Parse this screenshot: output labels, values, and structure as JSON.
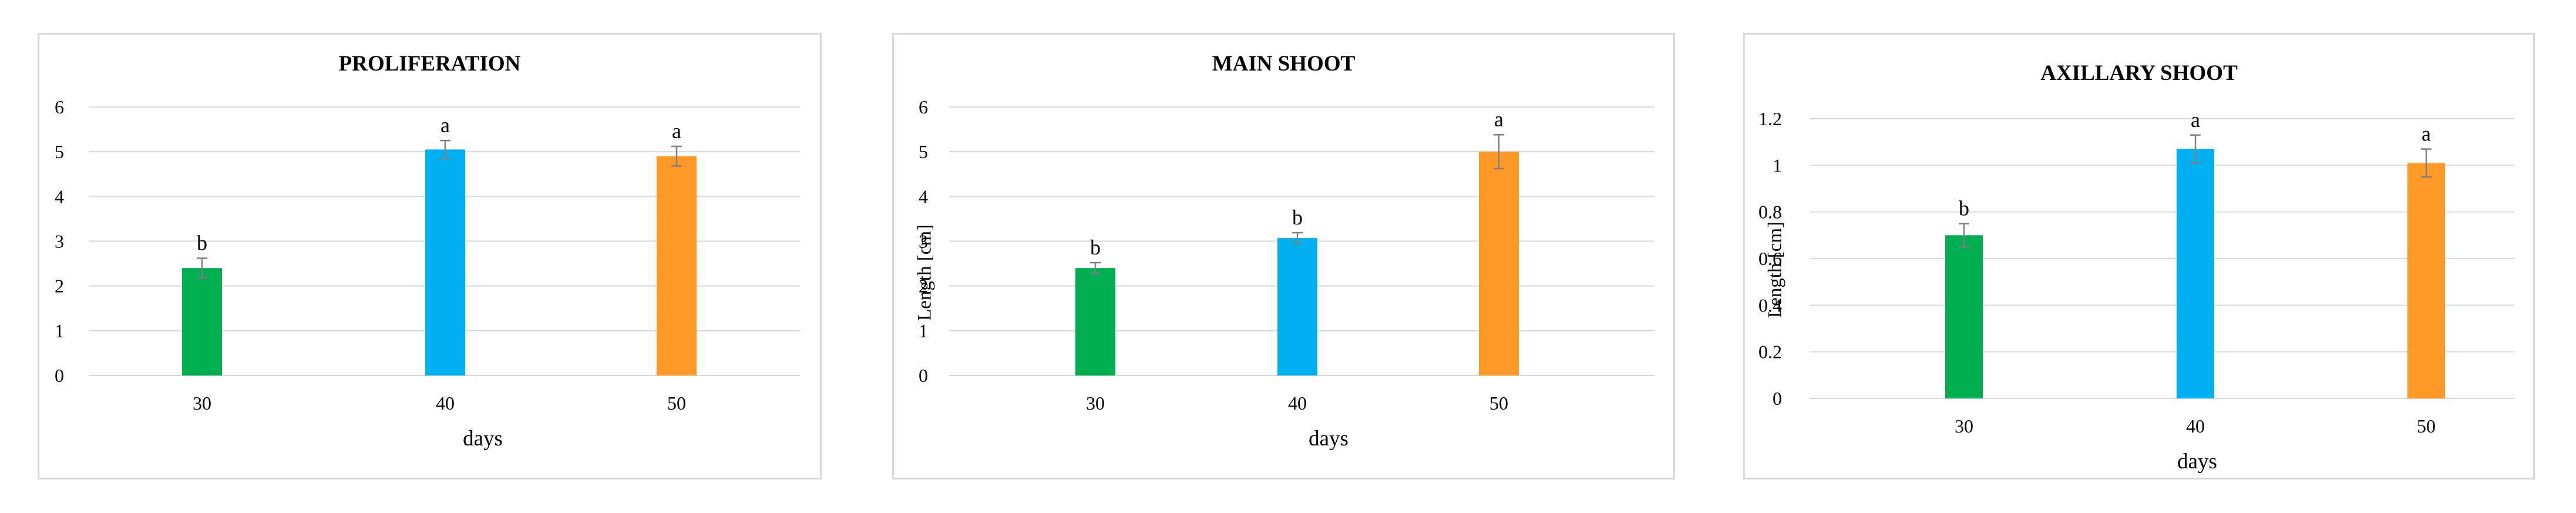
{
  "chart_data": [
    {
      "type": "bar",
      "title": "PROLIFERATION",
      "xlabel": "days",
      "ylabel": "",
      "categories": [
        "30",
        "40",
        "50"
      ],
      "values": [
        2.4,
        5.05,
        4.9
      ],
      "errors": [
        0.22,
        0.2,
        0.22
      ],
      "letters": [
        "b",
        "a",
        "a"
      ],
      "colors": [
        "#00b050",
        "#00b0f0",
        "#ff9a27"
      ],
      "ylim": [
        0,
        6
      ],
      "yticks": [
        "0",
        "1",
        "2",
        "3",
        "4",
        "5",
        "6"
      ],
      "grid": true
    },
    {
      "type": "bar",
      "title": "MAIN SHOOT",
      "xlabel": "days",
      "ylabel": "Length [cm]",
      "categories": [
        "30",
        "40",
        "50"
      ],
      "values": [
        2.4,
        3.07,
        5.0
      ],
      "errors": [
        0.12,
        0.12,
        0.38
      ],
      "letters": [
        "b",
        "b",
        "a"
      ],
      "colors": [
        "#00b050",
        "#00b0f0",
        "#ff9a27"
      ],
      "ylim": [
        0,
        6
      ],
      "yticks": [
        "0",
        "1",
        "2",
        "3",
        "4",
        "5",
        "6"
      ],
      "grid": true
    },
    {
      "type": "bar",
      "title": "AXILLARY SHOOT",
      "xlabel": "days",
      "ylabel": "Length [cm]",
      "categories": [
        "30",
        "40",
        "50"
      ],
      "values": [
        0.7,
        1.07,
        1.01
      ],
      "errors": [
        0.05,
        0.06,
        0.06
      ],
      "letters": [
        "b",
        "a",
        "a"
      ],
      "colors": [
        "#00b050",
        "#00b0f0",
        "#ff9a27"
      ],
      "ylim": [
        0,
        1.2
      ],
      "yticks": [
        "0",
        "0.2",
        "0.4",
        "0.6",
        "0.8",
        "1",
        "1.2"
      ],
      "grid": true
    }
  ]
}
